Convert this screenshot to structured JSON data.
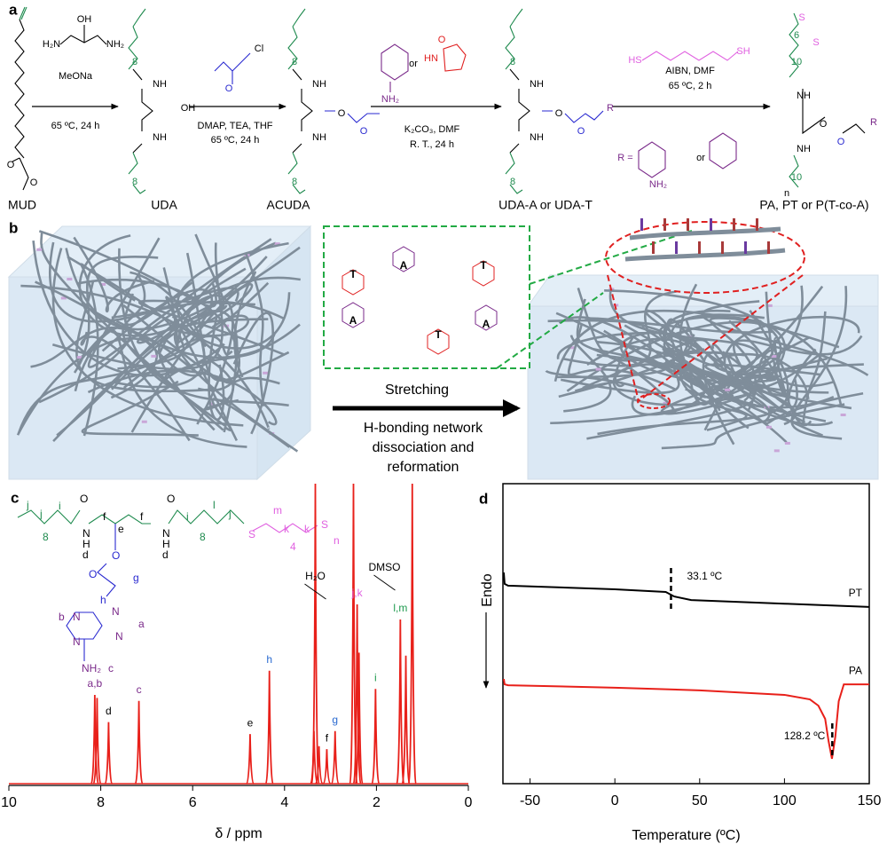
{
  "panel_labels": [
    "a",
    "b",
    "c",
    "d"
  ],
  "scheme": {
    "compounds": [
      "MUD",
      "UDA",
      "ACUDA",
      "UDA-A or UDA-T",
      "PA, PT or P(T-co-A)"
    ],
    "conditions": [
      "MeONa",
      "65 ºC, 24 h",
      "DMAP, TEA, THF",
      "65 ºC, 24 h",
      "K₂CO₃, DMF",
      "R. T., 24 h",
      "AIBN, DMF",
      "65 ºC, 2 h"
    ],
    "atoms": [
      "O",
      "O",
      "H₂N",
      "OH",
      "NH₂",
      "8",
      "NH",
      "OH",
      "NH",
      "8",
      "O",
      "Cl",
      "8",
      "NH",
      "O",
      "O",
      "NH",
      "8",
      "NH₂",
      "or",
      "O",
      "HN",
      "8",
      "NH",
      "O",
      "O",
      "R",
      "NH",
      "8",
      "HS",
      "SH",
      "R =",
      "or",
      "NH₂",
      "6",
      "10",
      "NH",
      "O",
      "O",
      "R",
      "NH",
      "10",
      "n",
      "S",
      "S"
    ]
  },
  "network": {
    "bases": [
      "T",
      "A",
      "A",
      "T",
      "T",
      "A"
    ],
    "arrow_text": [
      "Stretching",
      "H-bonding network",
      "dissociation and",
      "reformation"
    ]
  },
  "structure_c": {
    "labels": [
      "j",
      "j",
      "i",
      "O",
      "f",
      "f",
      "O",
      "i",
      "l",
      "j",
      "S",
      "m",
      "k",
      "k",
      "S",
      "n",
      "8",
      "N",
      "H",
      "e",
      "N",
      "H",
      "8",
      "4",
      "d",
      "d",
      "O",
      "O",
      "g",
      "h",
      "b",
      "a",
      "N",
      "N",
      "N",
      "N",
      "NH₂",
      "c"
    ]
  },
  "chart_data": [
    {
      "type": "spectrum",
      "xlabel": "δ / ppm",
      "xlim": [
        10,
        0
      ],
      "xticks": [
        10,
        8,
        6,
        4,
        2,
        0
      ],
      "ylim": [
        0,
        100
      ],
      "color": "#e8201a",
      "x": [
        8.13,
        8.08,
        7.83,
        7.17,
        4.75,
        4.33,
        3.36,
        3.33,
        3.25,
        3.08,
        2.9,
        2.5,
        2.42,
        2.38,
        2.02,
        1.48,
        1.36,
        1.22
      ],
      "values": [
        30,
        29,
        21,
        28,
        17,
        38,
        18,
        100,
        13,
        12,
        18,
        100,
        60,
        44,
        32,
        55,
        43,
        100
      ],
      "labels": [
        "a,b",
        null,
        "d",
        "c",
        "e",
        "h",
        null,
        null,
        null,
        "f",
        "g",
        null,
        "j,k",
        null,
        "i",
        "l,m",
        null,
        null
      ],
      "label_colors": [
        "#7a2a8a",
        null,
        "#000000",
        "#7a2a8a",
        "#000000",
        "#2a6ad0",
        null,
        null,
        null,
        "#000000",
        "#2a6ad0",
        null,
        "#e060e0",
        null,
        "#1e9a4e",
        "#1e9a4e",
        null,
        null
      ],
      "annotations": [
        {
          "text": "H₂O",
          "x": 3.33
        },
        {
          "text": "DMSO",
          "x": 2.5
        }
      ]
    },
    {
      "type": "line",
      "xlabel": "Temperature (ºC)",
      "ylabel": "Endo",
      "xlim": [
        -66,
        150
      ],
      "xticks": [
        -50,
        0,
        50,
        100,
        150
      ],
      "ylim": [
        0,
        100
      ],
      "series": [
        {
          "name": "PT",
          "color": "#000000",
          "x": [
            -65.5,
            -65,
            -63,
            0,
            30,
            35,
            45,
            100,
            150
          ],
          "values": [
            70.4,
            66.6,
            66,
            64.8,
            63.9,
            62.4,
            61.2,
            60,
            58.9
          ]
        },
        {
          "name": "PA",
          "color": "#e8201a",
          "x": [
            -65.5,
            -65,
            -63,
            0,
            50,
            100,
            115,
            120,
            124,
            126,
            128,
            130,
            132,
            135,
            150
          ],
          "values": [
            34.9,
            33.1,
            32.8,
            32,
            31.1,
            29.6,
            28.1,
            26,
            21.6,
            14.2,
            8.3,
            15.7,
            27.5,
            33.1,
            33.1
          ]
        }
      ],
      "annotations": [
        {
          "text": "33.1 ºC",
          "x": 33.1
        },
        {
          "text": "128.2 ºC",
          "x": 128.2
        }
      ]
    }
  ]
}
